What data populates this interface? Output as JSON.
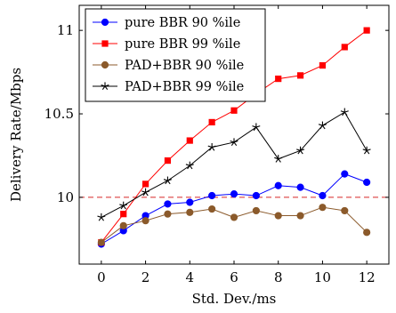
{
  "chart_data": {
    "type": "line",
    "xlabel": "Std. Dev./ms",
    "ylabel": "Delivery Rate/Mbps",
    "xlim": [
      -1,
      13
    ],
    "ylim": [
      9.6,
      11.15
    ],
    "xticks": [
      0,
      2,
      4,
      6,
      8,
      10,
      12
    ],
    "yticks": [
      10,
      10.5,
      11
    ],
    "ytick_labels": [
      "10",
      "10.5",
      "11"
    ],
    "grid": false,
    "legend_position": "top-left",
    "reference_line": {
      "y": 10,
      "color": "#d62728",
      "style": "dashed"
    },
    "x": [
      0,
      1,
      2,
      3,
      4,
      5,
      6,
      7,
      8,
      9,
      10,
      11,
      12
    ],
    "series": [
      {
        "name": "pure BBR 90 %ile",
        "color": "#0000ff",
        "marker": "circle",
        "values": [
          9.72,
          9.8,
          9.89,
          9.96,
          9.97,
          10.01,
          10.02,
          10.01,
          10.07,
          10.06,
          10.01,
          10.14,
          10.09
        ]
      },
      {
        "name": "pure BBR 99 %ile",
        "color": "#ff0000",
        "marker": "square",
        "values": [
          9.73,
          9.9,
          10.08,
          10.22,
          10.34,
          10.45,
          10.52,
          10.62,
          10.71,
          10.73,
          10.79,
          10.9,
          11.0
        ]
      },
      {
        "name": "PAD+BBR 90 %ile",
        "color": "#8b5a2b",
        "marker": "circle",
        "values": [
          9.73,
          9.83,
          9.86,
          9.9,
          9.91,
          9.93,
          9.88,
          9.92,
          9.89,
          9.89,
          9.94,
          9.92,
          9.79
        ]
      },
      {
        "name": "PAD+BBR 99 %ile",
        "color": "#000000",
        "marker": "star",
        "values": [
          9.88,
          9.95,
          10.03,
          10.1,
          10.19,
          10.3,
          10.33,
          10.42,
          10.23,
          10.28,
          10.43,
          10.51,
          10.28
        ]
      }
    ]
  }
}
